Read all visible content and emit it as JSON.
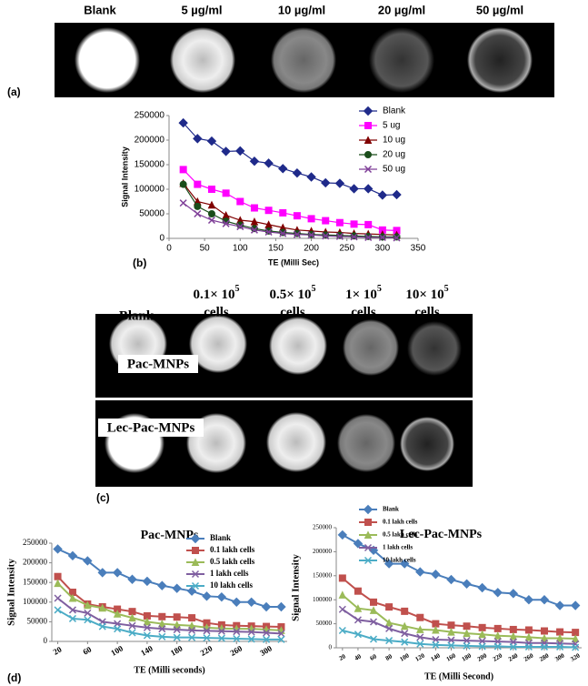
{
  "figure_a": {
    "label": "(a)",
    "columns": [
      "Blank",
      "5 µg/ml",
      "10 µg/ml",
      "20 µg/ml",
      "50 µg/ml"
    ]
  },
  "figure_b": {
    "label": "(b)"
  },
  "figure_c": {
    "label": "(c)",
    "columns": [
      {
        "line1": "Blank"
      },
      {
        "base": "0.1× 10",
        "exp": "5",
        "line2": "cells"
      },
      {
        "base": "0.5× 10",
        "exp": "5",
        "line2": "cells"
      },
      {
        "base": "1× 10",
        "exp": "5",
        "line2": "cells"
      },
      {
        "base": "10× 10",
        "exp": "5",
        "line2": "cells"
      }
    ],
    "rows": [
      "Pac-MNPs",
      "Lec-Pac-MNPs"
    ]
  },
  "figure_d": {
    "label": "(d)"
  },
  "chart_data": [
    {
      "type": "line",
      "ylabel": "Signal Intensity",
      "xlabel": "TE (Milli Sec)",
      "x": [
        20,
        40,
        60,
        80,
        100,
        120,
        140,
        160,
        180,
        200,
        220,
        240,
        260,
        280,
        300,
        320
      ],
      "xlim": [
        0,
        350
      ],
      "xticks": [
        0,
        50,
        100,
        150,
        200,
        250,
        300,
        350
      ],
      "ylim": [
        0,
        250000
      ],
      "yticks": [
        0,
        50000,
        100000,
        150000,
        200000,
        250000
      ],
      "legend": "right",
      "series": [
        {
          "name": "Blank",
          "color": "#1f2a8a",
          "marker": "diamond",
          "values": [
            235000,
            203000,
            198000,
            177000,
            178000,
            157000,
            153000,
            142000,
            133000,
            125000,
            113000,
            112000,
            101000,
            101000,
            88000,
            89000
          ]
        },
        {
          "name": "5 ug",
          "color": "#ff00ff",
          "marker": "square",
          "values": [
            140000,
            110000,
            100000,
            92000,
            75000,
            62000,
            57000,
            52000,
            46000,
            40000,
            36000,
            32000,
            29000,
            28000,
            17000,
            16000
          ]
        },
        {
          "name": "10 ug",
          "color": "#800000",
          "marker": "triangle",
          "values": [
            112000,
            75000,
            68000,
            47000,
            37000,
            34000,
            28000,
            22000,
            17000,
            15000,
            13000,
            12000,
            10000,
            9000,
            8000,
            7000
          ]
        },
        {
          "name": "20 ug",
          "color": "#1a4d1a",
          "marker": "circle",
          "values": [
            110000,
            65000,
            50000,
            35000,
            27000,
            20000,
            15000,
            12000,
            10000,
            8000,
            7000,
            6000,
            5000,
            4000,
            3000,
            3000
          ]
        },
        {
          "name": "50 ug",
          "color": "#7f3f98",
          "marker": "x",
          "values": [
            72000,
            50000,
            37000,
            30000,
            24000,
            17000,
            13000,
            10000,
            8000,
            7000,
            5000,
            4000,
            3000,
            2000,
            2000,
            1000
          ]
        }
      ]
    },
    {
      "type": "line",
      "title": "Pac-MNPs",
      "ylabel": "Signal Intensity",
      "xlabel": "TE (Milli seconds)",
      "x": [
        20,
        40,
        60,
        80,
        100,
        120,
        140,
        160,
        180,
        200,
        220,
        240,
        260,
        280,
        300,
        320
      ],
      "xlim": [
        12,
        328
      ],
      "xticks": [
        20,
        60,
        100,
        140,
        180,
        220,
        260,
        300
      ],
      "ylim": [
        0,
        250000
      ],
      "yticks": [
        0,
        50000,
        100000,
        150000,
        200000,
        250000
      ],
      "legend": "upper right",
      "series": [
        {
          "name": "Blank",
          "color": "#4a7ebb",
          "marker": "diamond",
          "values": [
            235000,
            218000,
            205000,
            175000,
            175000,
            158000,
            153000,
            142000,
            135000,
            128000,
            115000,
            113000,
            100000,
            100000,
            88000,
            88000
          ]
        },
        {
          "name": "0.1 lakh cells",
          "color": "#c0504d",
          "marker": "square",
          "values": [
            165000,
            125000,
            95000,
            88000,
            82000,
            76000,
            65000,
            63000,
            62000,
            60000,
            47000,
            42000,
            40000,
            39000,
            38000,
            37000
          ]
        },
        {
          "name": "0.5 lakh cells",
          "color": "#9bbb59",
          "marker": "triangle",
          "values": [
            148000,
            110000,
            92000,
            85000,
            70000,
            60000,
            50000,
            45000,
            42000,
            40000,
            35000,
            33000,
            32000,
            32000,
            30000,
            28000
          ]
        },
        {
          "name": "1 lakh cells",
          "color": "#7f5fa0",
          "marker": "x",
          "values": [
            110000,
            80000,
            72000,
            50000,
            45000,
            40000,
            35000,
            32000,
            30000,
            28000,
            27000,
            26000,
            25000,
            24000,
            22000,
            20000
          ]
        },
        {
          "name": "10 lakh cells",
          "color": "#4bacc6",
          "marker": "x",
          "values": [
            80000,
            58000,
            55000,
            38000,
            32000,
            22000,
            15000,
            12000,
            10000,
            10000,
            9000,
            8000,
            7000,
            6000,
            5000,
            5000
          ]
        }
      ]
    },
    {
      "type": "line",
      "title": "Lec-Pac-MNPs",
      "ylabel": "Signal Intensity",
      "xlabel": "TE  (Milli Second)",
      "x": [
        20,
        40,
        60,
        80,
        100,
        120,
        140,
        160,
        180,
        200,
        220,
        240,
        260,
        280,
        300,
        320
      ],
      "xlim": [
        12,
        328
      ],
      "xticks": [
        20,
        40,
        60,
        80,
        100,
        120,
        140,
        160,
        180,
        200,
        220,
        240,
        260,
        280,
        300,
        320
      ],
      "ylim": [
        0,
        250000
      ],
      "yticks": [
        0,
        50000,
        100000,
        150000,
        200000,
        250000
      ],
      "legend": "upper right",
      "series": [
        {
          "name": "Blank",
          "color": "#4a7ebb",
          "marker": "diamond",
          "values": [
            235000,
            217000,
            203000,
            175000,
            175000,
            158000,
            153000,
            142000,
            133000,
            125000,
            115000,
            113000,
            100000,
            100000,
            88000,
            88000
          ]
        },
        {
          "name": "0.1 lakh cells",
          "color": "#c0504d",
          "marker": "square",
          "values": [
            145000,
            118000,
            95000,
            85000,
            76000,
            63000,
            50000,
            47000,
            45000,
            42000,
            40000,
            38000,
            37000,
            35000,
            33000,
            32000
          ]
        },
        {
          "name": "0.5 lakh cells",
          "color": "#9bbb59",
          "marker": "triangle",
          "values": [
            110000,
            82000,
            78000,
            52000,
            45000,
            38000,
            37000,
            33000,
            30000,
            28000,
            25000,
            24000,
            22000,
            20000,
            20000,
            19000
          ]
        },
        {
          "name": "1 lakh cells",
          "color": "#7f5fa0",
          "marker": "x",
          "values": [
            80000,
            58000,
            54000,
            40000,
            30000,
            22000,
            17000,
            16000,
            15000,
            14000,
            13000,
            12000,
            10000,
            10000,
            9000,
            8000
          ]
        },
        {
          "name": "10 lakh cells",
          "color": "#4bacc6",
          "marker": "x",
          "values": [
            36000,
            28000,
            18000,
            15000,
            12000,
            8000,
            6000,
            5000,
            4000,
            3000,
            3000,
            2000,
            2000,
            2000,
            2000,
            1000
          ]
        }
      ]
    }
  ]
}
